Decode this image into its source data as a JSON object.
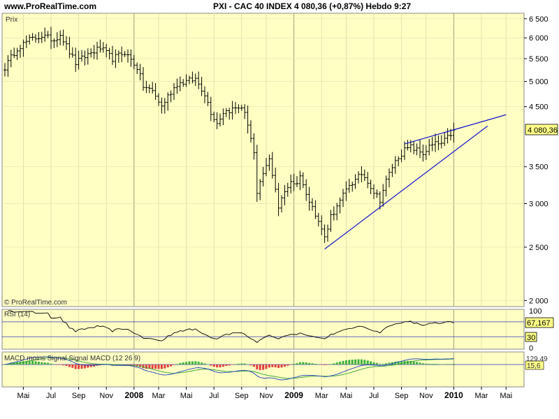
{
  "header": {
    "url": "www.ProRealTime.com",
    "title": "PXI - CAC 40 INDEX    4 080,36 (+0,87%)    Hebdo  9:27"
  },
  "colors": {
    "panel_bg": "#ffffc4",
    "trendline": "#0000cc",
    "rsi_line": "#000000",
    "macd_positive": "#40b040",
    "macd_negative": "#e04040",
    "price_label_bg": "#ffff88"
  },
  "price_panel": {
    "label": "Prix",
    "watermark": "© ProRealTime.com",
    "last_value_label": "4 080,36",
    "y_ticks": [
      {
        "value": 6500,
        "label": "6 500"
      },
      {
        "value": 6000,
        "label": "6 000"
      },
      {
        "value": 5500,
        "label": "5 500"
      },
      {
        "value": 5000,
        "label": "5 000"
      },
      {
        "value": 4500,
        "label": "4 500"
      },
      {
        "value": 3500,
        "label": "3 500"
      },
      {
        "value": 3000,
        "label": "3 000"
      },
      {
        "value": 2500,
        "label": "2 500"
      },
      {
        "value": 2000,
        "label": "2 000"
      }
    ]
  },
  "rsi_panel": {
    "label": "RSI (14)",
    "y_ticks": [
      {
        "value": 100,
        "label": "100"
      },
      {
        "value": 0,
        "label": "0"
      }
    ],
    "level_labels": [
      {
        "value": 70,
        "label": ""
      },
      {
        "value": 30,
        "label": "30"
      }
    ],
    "last_value_label": "67,167"
  },
  "macd_panel": {
    "label": "MACD moins Signal  Signal  MACD (12 26 9)",
    "last_value_labels": [
      "129,49",
      "15,6"
    ]
  },
  "x_axis": {
    "labels": [
      {
        "week": 6,
        "label": "Mai",
        "bold": false
      },
      {
        "week": 15,
        "label": "Jul",
        "bold": false
      },
      {
        "week": 24,
        "label": "Sep",
        "bold": false
      },
      {
        "week": 33,
        "label": "Nov",
        "bold": false
      },
      {
        "week": 42,
        "label": "2008",
        "bold": true
      },
      {
        "week": 50,
        "label": "Mar",
        "bold": false
      },
      {
        "week": 59,
        "label": "Mai",
        "bold": false
      },
      {
        "week": 68,
        "label": "Jul",
        "bold": false
      },
      {
        "week": 77,
        "label": "Sep",
        "bold": false
      },
      {
        "week": 85,
        "label": "Nov",
        "bold": false
      },
      {
        "week": 94,
        "label": "2009",
        "bold": true
      },
      {
        "week": 103,
        "label": "Mar",
        "bold": false
      },
      {
        "week": 111,
        "label": "Mai",
        "bold": false
      },
      {
        "week": 120,
        "label": "Jul",
        "bold": false
      },
      {
        "week": 129,
        "label": "Sep",
        "bold": false
      },
      {
        "week": 137,
        "label": "Nov",
        "bold": false
      },
      {
        "week": 146,
        "label": "2010",
        "bold": true
      },
      {
        "week": 155,
        "label": "Mar",
        "bold": false
      },
      {
        "week": 163,
        "label": "Mai",
        "bold": false
      }
    ]
  },
  "chart_data": {
    "type": "line",
    "title": "PXI - CAC 40 INDEX",
    "x_unit": "weekly bars",
    "y_scale": "log",
    "ylim": [
      1950,
      6650
    ],
    "price_anchors": [
      {
        "week": 0,
        "close": 5300
      },
      {
        "week": 4,
        "close": 5750
      },
      {
        "week": 8,
        "close": 5950
      },
      {
        "week": 12,
        "close": 6050
      },
      {
        "week": 16,
        "close": 5950
      },
      {
        "week": 18,
        "close": 6100
      },
      {
        "week": 21,
        "close": 5650
      },
      {
        "week": 23,
        "close": 5400
      },
      {
        "week": 27,
        "close": 5600
      },
      {
        "week": 31,
        "close": 5750
      },
      {
        "week": 35,
        "close": 5500
      },
      {
        "week": 39,
        "close": 5650
      },
      {
        "week": 43,
        "close": 5300
      },
      {
        "week": 45,
        "close": 4900
      },
      {
        "week": 48,
        "close": 4800
      },
      {
        "week": 51,
        "close": 4500
      },
      {
        "week": 53,
        "close": 4700
      },
      {
        "week": 56,
        "close": 4950
      },
      {
        "week": 59,
        "close": 5000
      },
      {
        "week": 62,
        "close": 5050
      },
      {
        "week": 65,
        "close": 4750
      },
      {
        "week": 67,
        "close": 4400
      },
      {
        "week": 69,
        "close": 4200
      },
      {
        "week": 71,
        "close": 4400
      },
      {
        "week": 74,
        "close": 4450
      },
      {
        "week": 77,
        "close": 4500
      },
      {
        "week": 79,
        "close": 4200
      },
      {
        "week": 81,
        "close": 3700
      },
      {
        "week": 82,
        "close": 3100
      },
      {
        "week": 84,
        "close": 3400
      },
      {
        "week": 86,
        "close": 3600
      },
      {
        "week": 88,
        "close": 3200
      },
      {
        "week": 89,
        "close": 2950
      },
      {
        "week": 91,
        "close": 3150
      },
      {
        "week": 93,
        "close": 3300
      },
      {
        "week": 95,
        "close": 3250
      },
      {
        "week": 96,
        "close": 3400
      },
      {
        "week": 98,
        "close": 3100
      },
      {
        "week": 100,
        "close": 3000
      },
      {
        "week": 101,
        "close": 2850
      },
      {
        "week": 103,
        "close": 2700
      },
      {
        "week": 104,
        "close": 2600
      },
      {
        "week": 106,
        "close": 2850
      },
      {
        "week": 108,
        "close": 2950
      },
      {
        "week": 110,
        "close": 3100
      },
      {
        "week": 112,
        "close": 3250
      },
      {
        "week": 114,
        "close": 3300
      },
      {
        "week": 116,
        "close": 3400
      },
      {
        "week": 118,
        "close": 3300
      },
      {
        "week": 120,
        "close": 3150
      },
      {
        "week": 122,
        "close": 3050
      },
      {
        "week": 124,
        "close": 3300
      },
      {
        "week": 126,
        "close": 3500
      },
      {
        "week": 128,
        "close": 3650
      },
      {
        "week": 130,
        "close": 3750
      },
      {
        "week": 132,
        "close": 3800
      },
      {
        "week": 134,
        "close": 3750
      },
      {
        "week": 136,
        "close": 3700
      },
      {
        "week": 138,
        "close": 3800
      },
      {
        "week": 140,
        "close": 3850
      },
      {
        "week": 142,
        "close": 3850
      },
      {
        "week": 144,
        "close": 3950
      },
      {
        "week": 146,
        "close": 4080
      }
    ],
    "trendlines": [
      {
        "from": {
          "week": 104,
          "value": 2480
        },
        "to": {
          "week": 157,
          "value": 4150
        }
      },
      {
        "from": {
          "week": 130,
          "value": 3850
        },
        "to": {
          "week": 163,
          "value": 4350
        }
      }
    ],
    "rsi": {
      "period": 14,
      "levels": [
        30,
        70
      ],
      "last": 67.167
    },
    "macd": {
      "fast": 12,
      "slow": 26,
      "signal": 9
    }
  }
}
